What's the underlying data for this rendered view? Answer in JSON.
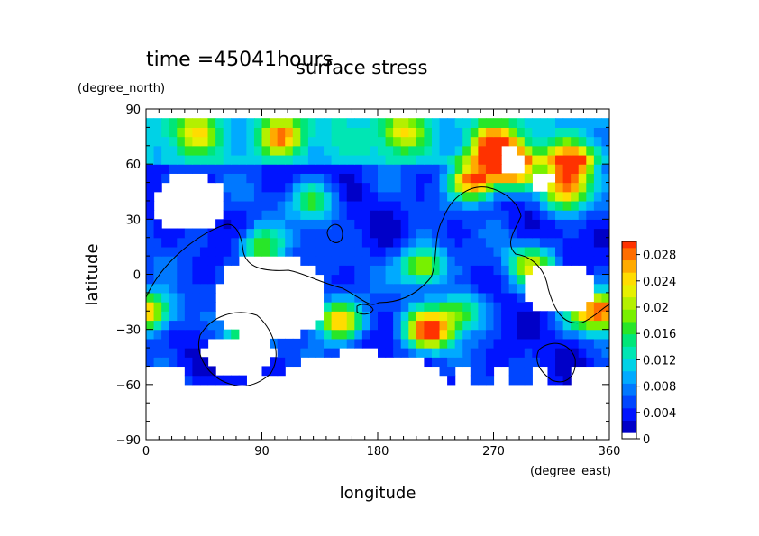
{
  "header": {
    "time_label": "time =45041hours",
    "title": "surface stress"
  },
  "chart_data": {
    "type": "heatmap",
    "title": "surface stress",
    "xlabel": "longitude",
    "ylabel": "latitude",
    "x_unit": "(degree_east)",
    "y_unit": "(degree_north)",
    "xlim": [
      0,
      360
    ],
    "ylim": [
      -90,
      90
    ],
    "x_ticks": [
      "0",
      "90",
      "180",
      "270",
      "360"
    ],
    "y_ticks": [
      "90",
      "60",
      "30",
      "0",
      "−30",
      "−60",
      "−90"
    ],
    "x_tick_values": [
      0,
      90,
      180,
      270,
      360
    ],
    "y_tick_values": [
      90,
      60,
      30,
      0,
      -30,
      -60,
      -90
    ],
    "colorbar": {
      "min": 0,
      "max": 0.03,
      "labels": [
        "0.028",
        "0.024",
        "0.02",
        "0.016",
        "0.012",
        "0.008",
        "0.004",
        "0"
      ],
      "label_values": [
        0.028,
        0.024,
        0.02,
        0.016,
        0.012,
        0.008,
        0.004,
        0
      ],
      "colors": [
        "#ffffff",
        "#0000c8",
        "#0014ff",
        "#0046ff",
        "#0078ff",
        "#00aaff",
        "#00d2e6",
        "#00e6b4",
        "#00e678",
        "#28e628",
        "#78f000",
        "#b4f000",
        "#e6f000",
        "#ffdc00",
        "#ffaa00",
        "#ff6e00",
        "#ff3200"
      ]
    },
    "data_note_colors": {
      "coast_line": "#000000"
    },
    "features": [
      {
        "lon": 105,
        "lat": 75,
        "value": 0.018
      },
      {
        "lon": 40,
        "lat": 78,
        "value": 0.012
      },
      {
        "lon": 200,
        "lat": 78,
        "value": 0.014
      },
      {
        "lon": 270,
        "lat": 70,
        "value": 0.022
      },
      {
        "lon": 285,
        "lat": 58,
        "value": 0.027
      },
      {
        "lon": 255,
        "lat": 52,
        "value": 0.026
      },
      {
        "lon": 330,
        "lat": 60,
        "value": 0.024
      },
      {
        "lon": 325,
        "lat": 45,
        "value": 0.02
      },
      {
        "lon": 215,
        "lat": 5,
        "value": 0.018
      },
      {
        "lon": 220,
        "lat": -30,
        "value": 0.026
      },
      {
        "lon": 150,
        "lat": -25,
        "value": 0.022
      },
      {
        "lon": 345,
        "lat": -20,
        "value": 0.018
      },
      {
        "lon": 5,
        "lat": -20,
        "value": 0.016
      },
      {
        "lon": 90,
        "lat": 15,
        "value": 0.014
      },
      {
        "lon": 300,
        "lat": 5,
        "value": 0.016
      },
      {
        "lon": 245,
        "lat": -20,
        "value": 0.014
      },
      {
        "lon": 75,
        "lat": -35,
        "value": 0.012
      },
      {
        "lon": 130,
        "lat": 40,
        "value": 0.012
      }
    ]
  }
}
